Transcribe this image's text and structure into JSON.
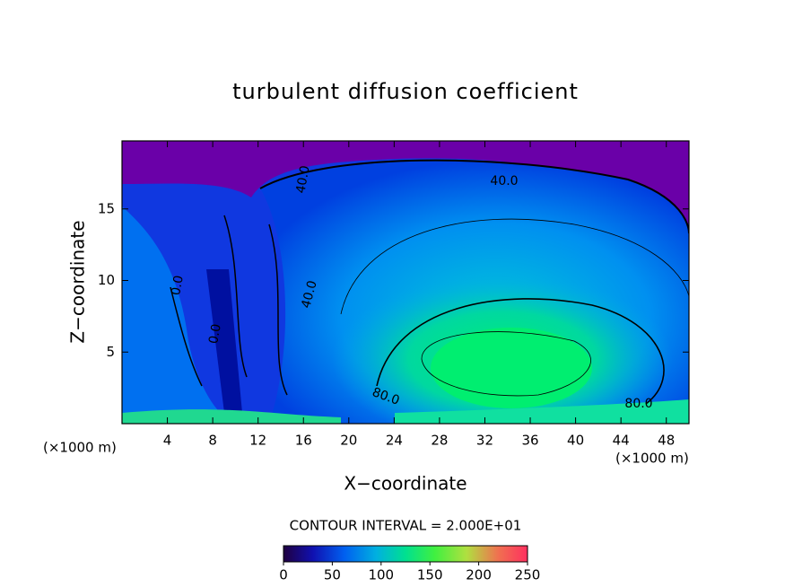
{
  "chart_data": {
    "type": "contour",
    "title": "turbulent diffusion coefficient",
    "x_label": "X−coordinate",
    "y_label": "Z−coordinate",
    "x_unit": "(×1000 m)",
    "y_unit": "(×1000 m)",
    "xlim": [
      0,
      50
    ],
    "xticks": [
      4,
      8,
      12,
      16,
      20,
      24,
      28,
      32,
      36,
      40,
      44,
      48
    ],
    "ylim": [
      0,
      19.75
    ],
    "yticks": [
      5,
      10,
      15
    ],
    "contour_interval_label": "CONTOUR INTERVAL = 2.000E+01",
    "contour_labels": [
      "40.0",
      "40.0",
      "0.0",
      "40.0",
      "0.0",
      "80.0",
      "80.0"
    ],
    "colorbar": {
      "range": [
        0,
        250
      ],
      "ticks": [
        0,
        50,
        100,
        150,
        200,
        250
      ]
    }
  }
}
